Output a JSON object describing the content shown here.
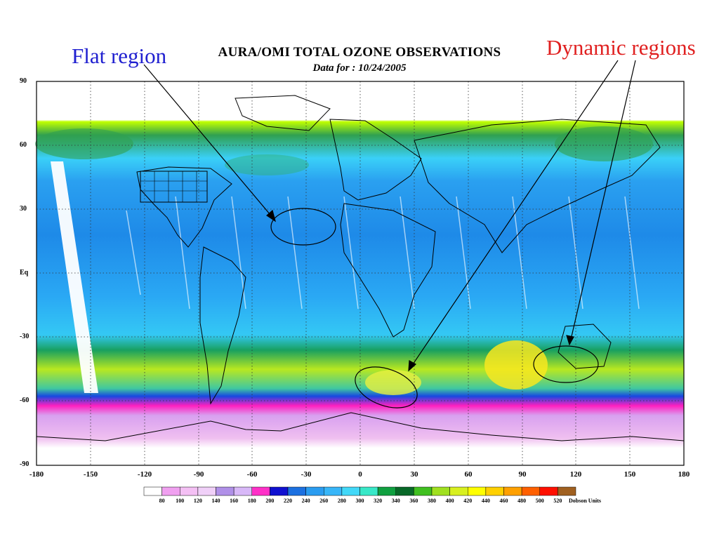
{
  "title": "AURA/OMI TOTAL OZONE OBSERVATIONS",
  "subtitle": "Data for : 10/24/2005",
  "annotations": {
    "flat": "Flat region",
    "dynamic": "Dynamic regions"
  },
  "latitudes": [
    "90",
    "60",
    "30",
    "Eq",
    "-30",
    "-60",
    "-90"
  ],
  "longitudes": [
    "-180",
    "-150",
    "-120",
    "-90",
    "-60",
    "-30",
    "0",
    "30",
    "60",
    "90",
    "120",
    "150",
    "180"
  ],
  "colorbar": {
    "colors": [
      "#ffffff",
      "#f0a0f0",
      "#f4c0f4",
      "#f0d0f8",
      "#b090e8",
      "#d8b8f8",
      "#ff30c8",
      "#1010d0",
      "#1c70e0",
      "#2a9cf0",
      "#38b6f8",
      "#42d8f8",
      "#38e8c8",
      "#10a040",
      "#086828",
      "#40c020",
      "#a0e020",
      "#d8f020",
      "#ffff00",
      "#ffd000",
      "#ffa000",
      "#ff6000",
      "#ff1000",
      "#a06020"
    ],
    "labels": [
      "80",
      "100",
      "120",
      "140",
      "160",
      "180",
      "200",
      "220",
      "240",
      "260",
      "280",
      "300",
      "320",
      "340",
      "360",
      "380",
      "400",
      "420",
      "440",
      "460",
      "480",
      "500",
      "520"
    ],
    "units": "Dobson Units"
  }
}
